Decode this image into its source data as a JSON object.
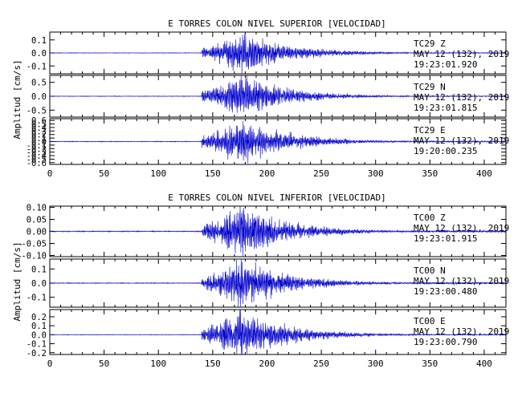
{
  "chart_data": [
    {
      "type": "line",
      "title": "E TORRES COLON NIVEL SUPERIOR [VELOCIDAD]",
      "ylabel": "Amplitud [cm/s]",
      "xlim": [
        0,
        420
      ],
      "x_ticks": [
        "0",
        "50",
        "100",
        "150",
        "200",
        "250",
        "300",
        "350",
        "400"
      ],
      "series_color": "#0000cc",
      "panels": [
        {
          "name": "TC29 Z",
          "station": "TC29",
          "component": "Z",
          "date": "MAY 12 (132), 2019",
          "time": "19:23:01.920",
          "ylim": [
            -0.16,
            0.16
          ],
          "y_ticks": [
            -0.1,
            0.0,
            0.1
          ],
          "y_tick_labels": [
            "-0.1",
            "0.0",
            "0.1"
          ],
          "onset": 140,
          "peak_time": 175,
          "peak_amplitude": 0.15,
          "pre_event_noise": 0.002
        },
        {
          "name": "TC29 N",
          "station": "TC29",
          "component": "N",
          "date": "MAY 12 (132), 2019",
          "time": "19:23:01.815",
          "ylim": [
            -0.75,
            0.75
          ],
          "y_ticks": [
            -0.5,
            0.0,
            0.5
          ],
          "y_tick_labels": [
            "-0.5",
            "0.0",
            "0.5"
          ],
          "onset": 140,
          "peak_time": 175,
          "peak_amplitude": 0.7,
          "pre_event_noise": 0.01
        },
        {
          "name": "TC29 E",
          "station": "TC29",
          "component": "E",
          "date": "MAY 12 (132), 2019",
          "time": "19:20:00.235",
          "ylim": [
            -0.65,
            0.65
          ],
          "y_ticks": [
            -0.6,
            -0.5,
            -0.4,
            -0.3,
            -0.2,
            -0.1,
            0.0,
            0.1,
            0.2,
            0.3,
            0.4,
            0.5,
            0.6
          ],
          "y_tick_labels": [
            "-0.6",
            "-0.5",
            "-0.4",
            "-0.3",
            "-0.2",
            "-0.1",
            "0.0",
            "0.1",
            "0.2",
            "0.3",
            "0.4",
            "0.5",
            "0.6"
          ],
          "onset": 140,
          "peak_time": 175,
          "peak_amplitude": 0.6,
          "pre_event_noise": 0.01
        }
      ]
    },
    {
      "type": "line",
      "title": "E TORRES COLON NIVEL INFERIOR [VELOCIDAD]",
      "ylabel": "Amplitud [cm/s]",
      "xlim": [
        0,
        420
      ],
      "x_ticks": [
        "0",
        "50",
        "100",
        "150",
        "200",
        "250",
        "300",
        "350",
        "400"
      ],
      "series_color": "#0000cc",
      "panels": [
        {
          "name": "TC00 Z",
          "station": "TC00",
          "component": "Z",
          "date": "MAY 12 (132), 2019",
          "time": "19:23:01.915",
          "ylim": [
            -0.105,
            0.105
          ],
          "y_ticks": [
            -0.1,
            -0.05,
            0.0,
            0.05,
            0.1
          ],
          "y_tick_labels": [
            "-0.10",
            "-0.05",
            "0.00",
            "0.05",
            "0.10"
          ],
          "onset": 140,
          "peak_time": 175,
          "peak_amplitude": 0.1,
          "pre_event_noise": 0.002
        },
        {
          "name": "TC00 N",
          "station": "TC00",
          "component": "N",
          "date": "MAY 12 (132), 2019",
          "time": "19:23:00.480",
          "ylim": [
            -0.17,
            0.17
          ],
          "y_ticks": [
            -0.1,
            0.0,
            0.1
          ],
          "y_tick_labels": [
            "-0.1",
            "0.0",
            "0.1"
          ],
          "onset": 140,
          "peak_time": 175,
          "peak_amplitude": 0.16,
          "pre_event_noise": 0.003
        },
        {
          "name": "TC00 E",
          "station": "TC00",
          "component": "E",
          "date": "MAY 12 (132), 2019",
          "time": "19:23:00.790",
          "ylim": [
            -0.22,
            0.28
          ],
          "y_ticks": [
            -0.2,
            -0.1,
            0.0,
            0.1,
            0.2
          ],
          "y_tick_labels": [
            "-0.2",
            "-0.1",
            "0.0",
            "0.1",
            "0.2"
          ],
          "onset": 140,
          "peak_time": 175,
          "peak_amplitude": 0.25,
          "pre_event_noise": 0.003
        }
      ]
    }
  ]
}
